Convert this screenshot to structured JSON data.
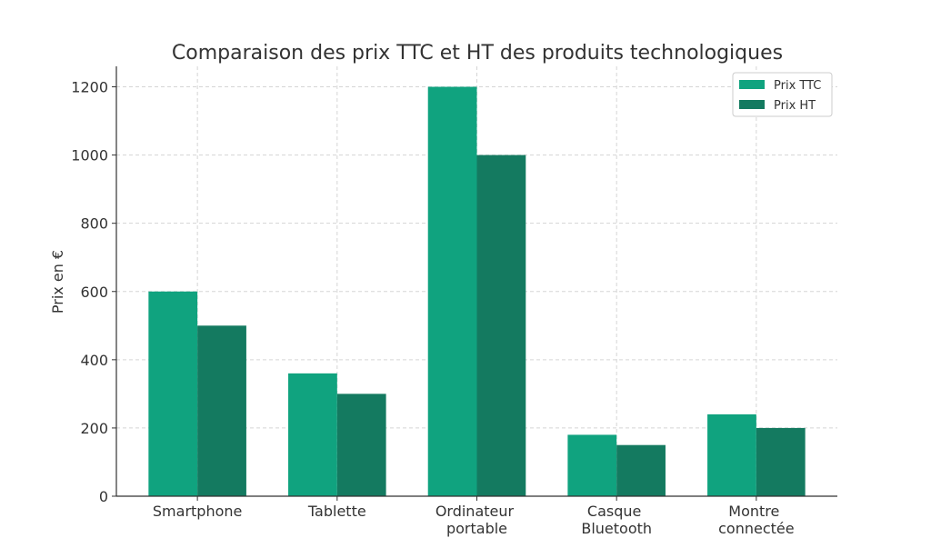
{
  "chart_data": {
    "type": "bar",
    "title": "Comparaison des prix TTC et HT des produits technologiques",
    "xlabel": "",
    "ylabel": "Prix en €",
    "categories": [
      "Smartphone",
      "Tablette",
      "Ordinateur portable",
      "Casque Bluetooth",
      "Montre connectée"
    ],
    "series": [
      {
        "name": "Prix TTC",
        "values": [
          600,
          360,
          1200,
          180,
          240
        ],
        "color": "#10a37f"
      },
      {
        "name": "Prix HT",
        "values": [
          500,
          300,
          1000,
          150,
          200
        ],
        "color": "#147a60"
      }
    ],
    "ylim": [
      0,
      1260
    ],
    "yticks": [
      0,
      200,
      400,
      600,
      800,
      1000,
      1200
    ],
    "grid": true,
    "legend": "top-right"
  }
}
